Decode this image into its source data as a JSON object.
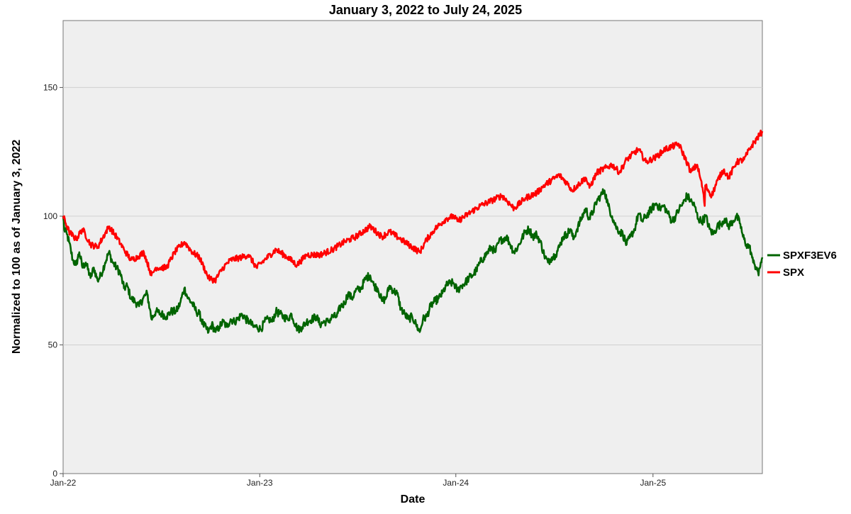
{
  "chart_data": {
    "type": "line",
    "title": "January 3, 2022 to July 24, 2025",
    "xlabel": "Date",
    "ylabel": "Normalized to 100 as of January 3, 2022",
    "x_range": [
      "2022-01-03",
      "2025-07-24"
    ],
    "ylim": [
      0,
      176
    ],
    "y_ticks": [
      0,
      50,
      100,
      150
    ],
    "x_ticks": [
      {
        "date": "2022-01-03",
        "label": "Jan-22"
      },
      {
        "date": "2023-01-03",
        "label": "Jan-23"
      },
      {
        "date": "2024-01-02",
        "label": "Jan-24"
      },
      {
        "date": "2025-01-02",
        "label": "Jan-25"
      }
    ],
    "grid": "horizontal",
    "legend_position": "right",
    "plot_background": "#efefef",
    "series": [
      {
        "name": "SPXF3EV6",
        "color": "#006400",
        "points": [
          [
            "2022-01-03",
            100
          ],
          [
            "2022-01-05",
            95
          ],
          [
            "2022-01-10",
            93
          ],
          [
            "2022-01-14",
            90
          ],
          [
            "2022-01-21",
            83
          ],
          [
            "2022-01-27",
            81
          ],
          [
            "2022-02-02",
            86
          ],
          [
            "2022-02-08",
            80
          ],
          [
            "2022-02-14",
            82
          ],
          [
            "2022-02-23",
            76
          ],
          [
            "2022-03-01",
            80
          ],
          [
            "2022-03-08",
            75
          ],
          [
            "2022-03-14",
            77
          ],
          [
            "2022-03-22",
            82
          ],
          [
            "2022-03-29",
            86
          ],
          [
            "2022-04-05",
            82
          ],
          [
            "2022-04-12",
            80
          ],
          [
            "2022-04-19",
            78
          ],
          [
            "2022-04-26",
            72
          ],
          [
            "2022-05-02",
            73
          ],
          [
            "2022-05-09",
            68
          ],
          [
            "2022-05-16",
            67
          ],
          [
            "2022-05-24",
            65
          ],
          [
            "2022-05-31",
            68
          ],
          [
            "2022-06-08",
            70
          ],
          [
            "2022-06-13",
            64
          ],
          [
            "2022-06-16",
            60
          ],
          [
            "2022-06-24",
            63
          ],
          [
            "2022-07-05",
            62
          ],
          [
            "2022-07-14",
            61
          ],
          [
            "2022-07-22",
            63
          ],
          [
            "2022-08-01",
            63
          ],
          [
            "2022-08-08",
            66
          ],
          [
            "2022-08-16",
            72
          ],
          [
            "2022-08-23",
            68
          ],
          [
            "2022-08-31",
            66
          ],
          [
            "2022-09-07",
            63
          ],
          [
            "2022-09-13",
            62
          ],
          [
            "2022-09-20",
            58
          ],
          [
            "2022-09-30",
            55
          ],
          [
            "2022-10-06",
            58
          ],
          [
            "2022-10-13",
            55
          ],
          [
            "2022-10-20",
            57
          ],
          [
            "2022-10-27",
            59
          ],
          [
            "2022-11-03",
            57
          ],
          [
            "2022-11-10",
            60
          ],
          [
            "2022-11-17",
            59
          ],
          [
            "2022-11-23",
            60
          ],
          [
            "2022-12-01",
            62
          ],
          [
            "2022-12-08",
            60
          ],
          [
            "2022-12-15",
            59
          ],
          [
            "2022-12-22",
            57
          ],
          [
            "2022-12-29",
            57
          ],
          [
            "2023-01-05",
            56
          ],
          [
            "2023-01-12",
            59
          ],
          [
            "2023-01-20",
            60
          ],
          [
            "2023-01-26",
            59
          ],
          [
            "2023-02-02",
            63
          ],
          [
            "2023-02-09",
            62
          ],
          [
            "2023-02-16",
            61
          ],
          [
            "2023-02-24",
            60
          ],
          [
            "2023-03-03",
            62
          ],
          [
            "2023-03-10",
            58
          ],
          [
            "2023-03-15",
            56
          ],
          [
            "2023-03-23",
            57
          ],
          [
            "2023-03-31",
            59
          ],
          [
            "2023-04-10",
            60
          ],
          [
            "2023-04-18",
            61
          ],
          [
            "2023-04-25",
            58
          ],
          [
            "2023-05-03",
            59
          ],
          [
            "2023-05-10",
            59
          ],
          [
            "2023-05-18",
            61
          ],
          [
            "2023-05-26",
            61
          ],
          [
            "2023-06-02",
            65
          ],
          [
            "2023-06-09",
            66
          ],
          [
            "2023-06-16",
            70
          ],
          [
            "2023-06-23",
            68
          ],
          [
            "2023-06-30",
            71
          ],
          [
            "2023-07-10",
            72
          ],
          [
            "2023-07-19",
            76
          ],
          [
            "2023-07-27",
            77
          ],
          [
            "2023-08-03",
            73
          ],
          [
            "2023-08-10",
            72
          ],
          [
            "2023-08-18",
            67
          ],
          [
            "2023-08-25",
            68
          ],
          [
            "2023-09-01",
            73
          ],
          [
            "2023-09-08",
            71
          ],
          [
            "2023-09-15",
            70
          ],
          [
            "2023-09-22",
            64
          ],
          [
            "2023-09-29",
            62
          ],
          [
            "2023-10-06",
            60
          ],
          [
            "2023-10-13",
            61
          ],
          [
            "2023-10-20",
            58
          ],
          [
            "2023-10-27",
            55
          ],
          [
            "2023-11-02",
            60
          ],
          [
            "2023-11-09",
            61
          ],
          [
            "2023-11-16",
            65
          ],
          [
            "2023-11-24",
            67
          ],
          [
            "2023-12-01",
            68
          ],
          [
            "2023-12-08",
            70
          ],
          [
            "2023-12-15",
            73
          ],
          [
            "2023-12-22",
            74
          ],
          [
            "2023-12-29",
            74
          ],
          [
            "2024-01-05",
            71
          ],
          [
            "2024-01-12",
            73
          ],
          [
            "2024-01-19",
            74
          ],
          [
            "2024-01-26",
            76
          ],
          [
            "2024-02-02",
            77
          ],
          [
            "2024-02-09",
            79
          ],
          [
            "2024-02-16",
            82
          ],
          [
            "2024-02-23",
            84
          ],
          [
            "2024-03-01",
            86
          ],
          [
            "2024-03-08",
            88
          ],
          [
            "2024-03-15",
            86
          ],
          [
            "2024-03-22",
            90
          ],
          [
            "2024-03-28",
            91
          ],
          [
            "2024-04-05",
            92
          ],
          [
            "2024-04-12",
            89
          ],
          [
            "2024-04-19",
            86
          ],
          [
            "2024-04-26",
            88
          ],
          [
            "2024-05-03",
            91
          ],
          [
            "2024-05-10",
            94
          ],
          [
            "2024-05-17",
            95
          ],
          [
            "2024-05-24",
            92
          ],
          [
            "2024-05-31",
            93
          ],
          [
            "2024-06-07",
            90
          ],
          [
            "2024-06-14",
            85
          ],
          [
            "2024-06-21",
            82
          ],
          [
            "2024-06-28",
            84
          ],
          [
            "2024-07-05",
            85
          ],
          [
            "2024-07-12",
            88
          ],
          [
            "2024-07-19",
            92
          ],
          [
            "2024-07-26",
            93
          ],
          [
            "2024-08-02",
            95
          ],
          [
            "2024-08-07",
            91
          ],
          [
            "2024-08-14",
            95
          ],
          [
            "2024-08-22",
            99
          ],
          [
            "2024-08-30",
            103
          ],
          [
            "2024-09-06",
            99
          ],
          [
            "2024-09-13",
            102
          ],
          [
            "2024-09-20",
            106
          ],
          [
            "2024-09-27",
            108
          ],
          [
            "2024-10-04",
            110
          ],
          [
            "2024-10-11",
            104
          ],
          [
            "2024-10-18",
            100
          ],
          [
            "2024-10-25",
            96
          ],
          [
            "2024-11-01",
            94
          ],
          [
            "2024-11-07",
            93
          ],
          [
            "2024-11-14",
            89
          ],
          [
            "2024-11-21",
            92
          ],
          [
            "2024-11-29",
            95
          ],
          [
            "2024-12-06",
            101
          ],
          [
            "2024-12-13",
            98
          ],
          [
            "2024-12-20",
            100
          ],
          [
            "2024-12-31",
            103
          ],
          [
            "2025-01-08",
            105
          ],
          [
            "2025-01-15",
            103
          ],
          [
            "2025-01-22",
            104
          ],
          [
            "2025-01-30",
            101
          ],
          [
            "2025-02-06",
            98
          ],
          [
            "2025-02-13",
            100
          ],
          [
            "2025-02-20",
            103
          ],
          [
            "2025-02-27",
            105
          ],
          [
            "2025-03-06",
            108
          ],
          [
            "2025-03-13",
            106
          ],
          [
            "2025-03-20",
            104
          ],
          [
            "2025-03-27",
            99
          ],
          [
            "2025-04-03",
            98
          ],
          [
            "2025-04-10",
            100
          ],
          [
            "2025-04-17",
            95
          ],
          [
            "2025-04-24",
            93
          ],
          [
            "2025-05-01",
            96
          ],
          [
            "2025-05-08",
            97
          ],
          [
            "2025-05-15",
            99
          ],
          [
            "2025-05-22",
            96
          ],
          [
            "2025-05-30",
            98
          ],
          [
            "2025-06-06",
            100
          ],
          [
            "2025-06-13",
            97
          ],
          [
            "2025-06-18",
            92
          ],
          [
            "2025-06-24",
            89
          ],
          [
            "2025-06-30",
            88
          ],
          [
            "2025-07-03",
            86
          ],
          [
            "2025-07-07",
            82
          ],
          [
            "2025-07-10",
            81
          ],
          [
            "2025-07-14",
            80
          ],
          [
            "2025-07-17",
            77
          ],
          [
            "2025-07-21",
            82
          ],
          [
            "2025-07-24",
            84
          ]
        ]
      },
      {
        "name": "SPX",
        "color": "#ff0000",
        "points": []
      }
    ]
  }
}
